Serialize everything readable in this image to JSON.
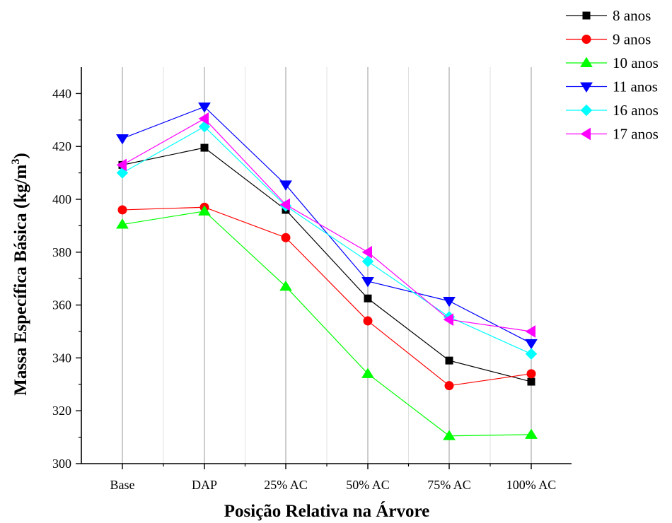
{
  "chart_data": {
    "type": "line",
    "xlabel": "Posição Relativa na Árvore",
    "ylabel": "Massa Específica Básica (kg/m",
    "ylabel_superscript": "3",
    "ylabel_close": ")",
    "categories": [
      "Base",
      "DAP",
      "25% AC",
      "50% AC",
      "75% AC",
      "100% AC"
    ],
    "ylim": [
      300,
      450
    ],
    "yticks": [
      300,
      320,
      340,
      360,
      380,
      400,
      420,
      440
    ],
    "grid": "vertical",
    "legend_position": "top-right",
    "series": [
      {
        "name": "8 anos",
        "color": "#000000",
        "marker": "square",
        "values": [
          413,
          419.5,
          396,
          362.5,
          339,
          331
        ]
      },
      {
        "name": "9 anos",
        "color": "#ff0000",
        "marker": "circle",
        "values": [
          396,
          397,
          385.5,
          354,
          329.5,
          334
        ]
      },
      {
        "name": "10 anos",
        "color": "#00ff00",
        "marker": "triangle-up",
        "values": [
          390.5,
          395.5,
          367,
          334,
          310.5,
          311
        ]
      },
      {
        "name": "11 anos",
        "color": "#0000ff",
        "marker": "triangle-down",
        "values": [
          423,
          435,
          405.5,
          369,
          361.5,
          345.5
        ]
      },
      {
        "name": "16 anos",
        "color": "#00ffff",
        "marker": "diamond",
        "values": [
          410,
          427.5,
          397.5,
          376.5,
          355.5,
          341.5
        ]
      },
      {
        "name": "17 anos",
        "color": "#ff00ff",
        "marker": "triangle-left",
        "values": [
          413,
          430.5,
          398,
          380,
          354.5,
          350
        ]
      }
    ]
  }
}
